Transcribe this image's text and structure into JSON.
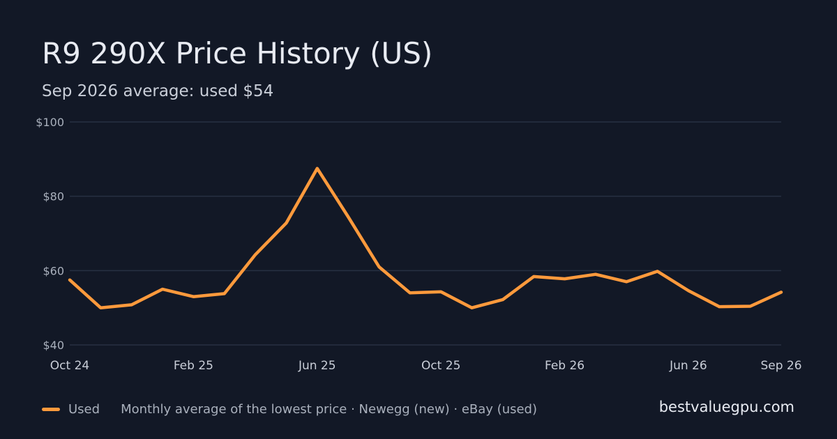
{
  "header": {
    "title": "R9 290X Price History (US)",
    "subtitle": "Sep 2026 average: used $54"
  },
  "footer": {
    "legend_label": "Used",
    "note": "Monthly average of the lowest price · Newegg (new) · eBay (used)",
    "brand": "bestvaluegpu.com"
  },
  "colors": {
    "background": "#121826",
    "line": "#ff9a3c",
    "grid": "#273042"
  },
  "chart_data": {
    "type": "line",
    "title": "R9 290X Price History (US)",
    "subtitle": "Sep 2026 average: used $54",
    "x": [
      "2024-10",
      "2024-11",
      "2024-12",
      "2025-01",
      "2025-02",
      "2025-03",
      "2025-04",
      "2025-05",
      "2025-06",
      "2025-07",
      "2025-08",
      "2025-09",
      "2025-10",
      "2025-11",
      "2025-12",
      "2026-01",
      "2026-02",
      "2026-03",
      "2026-04",
      "2026-05",
      "2026-06",
      "2026-07",
      "2026-08",
      "2026-09"
    ],
    "series": [
      {
        "name": "Used",
        "values": [
          57.5,
          50.0,
          50.8,
          55.0,
          53.0,
          53.8,
          64.3,
          72.8,
          87.5,
          74.5,
          61.0,
          54.0,
          54.3,
          50.0,
          52.2,
          58.4,
          57.8,
          59.0,
          57.0,
          59.8,
          54.6,
          50.3,
          50.4,
          54.2
        ]
      }
    ],
    "ylim": [
      40,
      100
    ],
    "yticks": [
      40,
      60,
      80,
      100
    ],
    "ytick_labels": [
      "$40",
      "$60",
      "$80",
      "$100"
    ],
    "xticks": [
      {
        "x": "2024-10",
        "label": "Oct 24"
      },
      {
        "x": "2025-02",
        "label": "Feb 25"
      },
      {
        "x": "2025-06",
        "label": "Jun 25"
      },
      {
        "x": "2025-10",
        "label": "Oct 25"
      },
      {
        "x": "2026-02",
        "label": "Feb 26"
      },
      {
        "x": "2026-06",
        "label": "Jun 26"
      },
      {
        "x": "2026-09",
        "label": "Sep 26"
      }
    ],
    "grid": true,
    "legend": "bottom-left"
  }
}
